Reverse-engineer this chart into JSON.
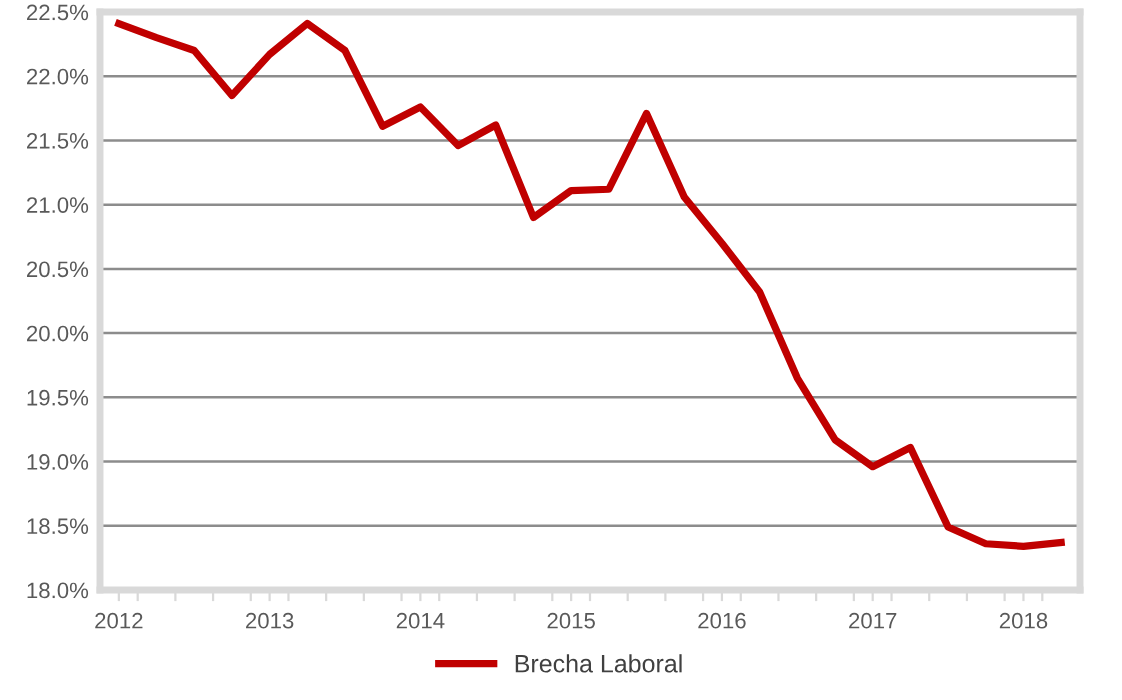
{
  "chart_data": {
    "type": "line",
    "x": [
      2012,
      2012.25,
      2012.5,
      2012.75,
      2013,
      2013.25,
      2013.5,
      2013.75,
      2014,
      2014.25,
      2014.5,
      2014.75,
      2015,
      2015.25,
      2015.5,
      2015.75,
      2016,
      2016.25,
      2016.5,
      2016.75,
      2017,
      2017.25,
      2017.5,
      2017.75,
      2018,
      2018.25
    ],
    "series": [
      {
        "name": "Brecha Laboral",
        "color": "#c00000",
        "values": [
          22.41,
          22.3,
          22.2,
          21.85,
          22.17,
          22.41,
          22.2,
          21.61,
          21.76,
          21.46,
          21.62,
          20.9,
          21.11,
          21.12,
          21.71,
          21.06,
          20.7,
          20.32,
          19.65,
          19.17,
          18.96,
          19.11,
          18.49,
          18.36,
          18.34,
          18.37
        ]
      }
    ],
    "xlim": [
      2011.875,
      2018.375
    ],
    "xticks": [
      2012,
      2013,
      2014,
      2015,
      2016,
      2017,
      2018,
      {
        "value": 2012.125,
        "label": null
      },
      {
        "value": 2012.375,
        "label": null
      },
      {
        "value": 2012.625,
        "label": null
      },
      {
        "value": 2012.875,
        "label": null
      },
      {
        "value": 2013.125,
        "label": null
      },
      {
        "value": 2013.375,
        "label": null
      },
      {
        "value": 2013.625,
        "label": null
      },
      {
        "value": 2013.875,
        "label": null
      },
      {
        "value": 2014.125,
        "label": null
      },
      {
        "value": 2014.375,
        "label": null
      },
      {
        "value": 2014.625,
        "label": null
      },
      {
        "value": 2014.875,
        "label": null
      },
      {
        "value": 2015.125,
        "label": null
      },
      {
        "value": 2015.375,
        "label": null
      },
      {
        "value": 2015.625,
        "label": null
      },
      {
        "value": 2015.875,
        "label": null
      },
      {
        "value": 2016.125,
        "label": null
      },
      {
        "value": 2016.375,
        "label": null
      },
      {
        "value": 2016.625,
        "label": null
      },
      {
        "value": 2016.875,
        "label": null
      },
      {
        "value": 2017.125,
        "label": null
      },
      {
        "value": 2017.375,
        "label": null
      },
      {
        "value": 2017.625,
        "label": null
      },
      {
        "value": 2017.875,
        "label": null
      },
      {
        "value": 2018.125,
        "label": null
      }
    ],
    "ylim": [
      18.0,
      22.5
    ],
    "yticks": [
      {
        "value": 18.0,
        "label": "18.0%"
      },
      {
        "value": 18.5,
        "label": "18.5%"
      },
      {
        "value": 19.0,
        "label": "19.0%"
      },
      {
        "value": 19.5,
        "label": "19.5%"
      },
      {
        "value": 20.0,
        "label": "20.0%"
      },
      {
        "value": 20.5,
        "label": "20.5%"
      },
      {
        "value": 21.0,
        "label": "21.0%"
      },
      {
        "value": 21.5,
        "label": "21.5%"
      },
      {
        "value": 22.0,
        "label": "22.0%"
      },
      {
        "value": 22.5,
        "label": "22.5%"
      }
    ],
    "grid": "y",
    "legend": "bottom",
    "marker": "none",
    "line_style": "solid"
  }
}
